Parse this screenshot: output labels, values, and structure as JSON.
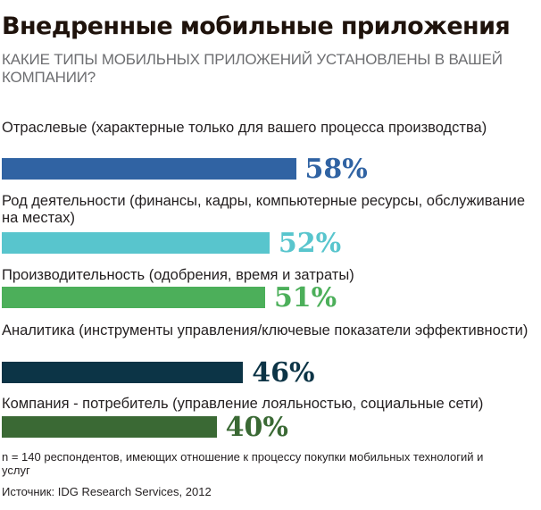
{
  "chart_data": {
    "type": "bar",
    "orientation": "horizontal",
    "title": "Внедренные мобильные приложения",
    "subtitle": "КАКИЕ ТИПЫ МОБИЛЬНЫХ ПРИЛОЖЕНИЙ УСТАНОВЛЕНЫ В ВАШЕЙ КОМПАНИИ?",
    "categories": [
      "Отраслевые (характерные только для вашего процесса производства)",
      "Род деятельности (финансы, кадры, компьютерные ресурсы, обслуживание на местах)",
      "Производительность (одобрения, время и затраты)",
      "Аналитика (инструменты управления/ключевые показатели эффективности)",
      "Компания - потребитель (управление лояльностью, социальные сети)"
    ],
    "values": [
      58,
      52,
      51,
      46,
      40
    ],
    "value_labels": [
      "58%",
      "52%",
      "51%",
      "46%",
      "40%"
    ],
    "colors": [
      "#3063a3",
      "#58c5cd",
      "#4caf5a",
      "#0c3446",
      "#3a6934"
    ],
    "unit": "%",
    "grid": false,
    "legend": "none"
  },
  "footnote": "n = 140 респондентов, имеющих отношение к процессу покупки мобильных технологий и услуг",
  "source": "Источник: IDG Research Services, 2012"
}
